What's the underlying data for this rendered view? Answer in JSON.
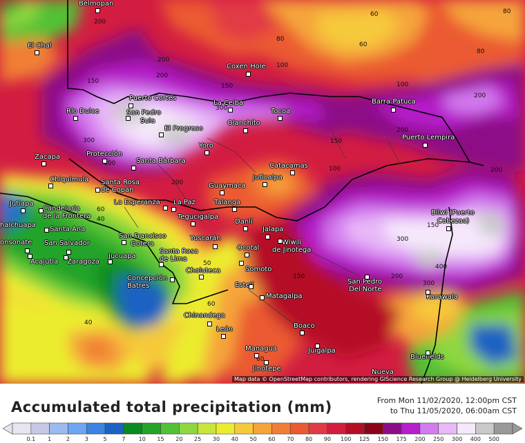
{
  "legend": {
    "title": "Accumulated total precipitation (mm)",
    "from": "From Mon 11/02/2020, 12:00pm CST",
    "to": "to Thu 11/05/2020, 06:00am CST",
    "ticks": [
      "0.1",
      "1",
      "2",
      "3",
      "5",
      "7",
      "10",
      "15",
      "20",
      "25",
      "30",
      "40",
      "50",
      "60",
      "70",
      "80",
      "90",
      "100",
      "125",
      "150",
      "175",
      "200",
      "250",
      "300",
      "400",
      "500"
    ],
    "colors": [
      "#e6e6f0",
      "#c7c7e6",
      "#9bbaf2",
      "#6fa6f2",
      "#3c84e0",
      "#1d62c2",
      "#0a8a1f",
      "#23a32a",
      "#53c136",
      "#8fd73f",
      "#c8e53c",
      "#ecec2e",
      "#f6c93b",
      "#f5a43a",
      "#f07f35",
      "#eb5a32",
      "#e13a45",
      "#d21d41",
      "#b50d25",
      "#8a0318",
      "#8c0d86",
      "#b51fc9",
      "#d37cf0",
      "#e8b8f7",
      "#f5e8fb",
      "#c9c9c9",
      "#999999"
    ]
  },
  "attribution": "Map data © OpenStreetMap contributors, rendering GIScience Research Group @ Heidelberg University",
  "places": [
    {
      "name": "Belmopan"
    },
    {
      "name": "El Chal"
    },
    {
      "name": "Coxen Hole"
    },
    {
      "name": "Puerto Cortés"
    },
    {
      "name": "San Pedro"
    },
    {
      "name": "Sula"
    },
    {
      "name": "Río Dulce"
    },
    {
      "name": "La Ceiba"
    },
    {
      "name": "Tocoa"
    },
    {
      "name": "Barra Patuca"
    },
    {
      "name": "El Progreso"
    },
    {
      "name": "Olanchito"
    },
    {
      "name": "Puerto Lempira"
    },
    {
      "name": "Yoro"
    },
    {
      "name": "Zacapa"
    },
    {
      "name": "Protección"
    },
    {
      "name": "Santa Bárbara"
    },
    {
      "name": "Catacamas"
    },
    {
      "name": "Chiquimula"
    },
    {
      "name": "Santa Rosa"
    },
    {
      "name": "de Copán"
    },
    {
      "name": "Juticalpa"
    },
    {
      "name": "Guaymaca"
    },
    {
      "name": "Jutiapa"
    },
    {
      "name": "Candelaria"
    },
    {
      "name": "de la Frontera"
    },
    {
      "name": "La Esperanza"
    },
    {
      "name": "La Paz"
    },
    {
      "name": "Talanga"
    },
    {
      "name": "Bilwi (Puerto"
    },
    {
      "name": "Cabezas)"
    },
    {
      "name": "halchuapa"
    },
    {
      "name": "Santa Ana"
    },
    {
      "name": "Tegucigalpa"
    },
    {
      "name": "Danlí"
    },
    {
      "name": "Jalapa"
    },
    {
      "name": "onsonate"
    },
    {
      "name": "San Salvador"
    },
    {
      "name": "San Francisco"
    },
    {
      "name": "Gotera"
    },
    {
      "name": "Yuscarán"
    },
    {
      "name": "Wiwilí"
    },
    {
      "name": "de Jinotega"
    },
    {
      "name": "Acajutla"
    },
    {
      "name": "Zaragoza"
    },
    {
      "name": "Jucuapa"
    },
    {
      "name": "Santa Rosa"
    },
    {
      "name": "de Lima"
    },
    {
      "name": "Ocotal"
    },
    {
      "name": "Somoto"
    },
    {
      "name": "Choluteca"
    },
    {
      "name": "Concepción"
    },
    {
      "name": "Batres"
    },
    {
      "name": "Estelí"
    },
    {
      "name": "San Pedro"
    },
    {
      "name": "Del Norte"
    },
    {
      "name": "Karawala"
    },
    {
      "name": "Matagalpa"
    },
    {
      "name": "Chinandega"
    },
    {
      "name": "León"
    },
    {
      "name": "Boaco"
    },
    {
      "name": "Juigalpa"
    },
    {
      "name": "Bluefields"
    },
    {
      "name": "Managua"
    },
    {
      "name": "Jinotepe"
    },
    {
      "name": "Nueva"
    }
  ],
  "contours": [
    "60",
    "80",
    "80",
    "60",
    "80",
    "100",
    "200",
    "200",
    "300",
    "150",
    "100",
    "200",
    "150",
    "150",
    "200",
    "300",
    "200",
    "200",
    "60",
    "40",
    "40",
    "50",
    "60",
    "60",
    "300",
    "400",
    "300",
    "200",
    "150",
    "100",
    "200",
    "100",
    "150"
  ]
}
